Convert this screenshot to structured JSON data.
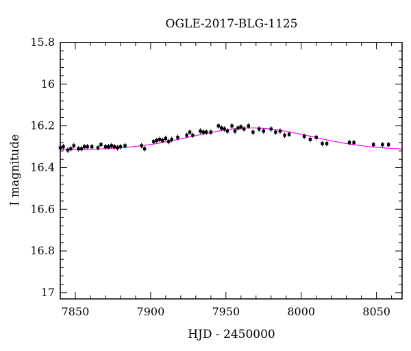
{
  "chart_data": {
    "type": "scatter",
    "title": "OGLE-2017-BLG-1125",
    "xlabel": "HJD - 2450000",
    "ylabel": "I magnitude",
    "xlim": [
      7840,
      8067
    ],
    "ylim": [
      17.03,
      15.8
    ],
    "y_inverted": true,
    "grid": false,
    "xticks": [
      7850,
      7900,
      7950,
      8000,
      8050
    ],
    "xtick_labels": [
      "7850",
      "7900",
      "7950",
      "8000",
      "8050"
    ],
    "yticks": [
      15.8,
      16.0,
      16.2,
      16.4,
      16.6,
      16.8,
      17.0
    ],
    "ytick_labels": [
      "15.8",
      "16",
      "16.2",
      "16.4",
      "16.6",
      "16.8",
      "17"
    ],
    "model_color": "#ff00ff",
    "point_color": "#000000",
    "model": {
      "baseline_mag": 16.315,
      "peak_mag": 16.21,
      "t0": 7967,
      "width": 40,
      "x": [
        7840,
        7850,
        7860,
        7870,
        7880,
        7890,
        7900,
        7910,
        7920,
        7930,
        7940,
        7950,
        7960,
        7967,
        7975,
        7985,
        7995,
        8005,
        8015,
        8025,
        8035,
        8045,
        8055,
        8067
      ],
      "y": [
        16.315,
        16.312,
        16.309,
        16.304,
        16.298,
        16.289,
        16.279,
        16.268,
        16.256,
        16.243,
        16.229,
        16.218,
        16.212,
        16.21,
        16.212,
        16.219,
        16.232,
        16.247,
        16.261,
        16.274,
        16.285,
        16.294,
        16.301,
        16.309
      ]
    },
    "series": [
      {
        "x": [
          7840,
          7842,
          7845,
          7847,
          7849,
          7852,
          7854,
          7856,
          7858,
          7861,
          7865,
          7867,
          7870,
          7872,
          7874,
          7876,
          7878,
          7880,
          7883,
          7894,
          7896,
          7902,
          7904,
          7906,
          7908,
          7910,
          7912,
          7914,
          7918,
          7924,
          7926,
          7928,
          7933,
          7935,
          7937,
          7940,
          7945,
          7947,
          7949,
          7951,
          7954,
          7956,
          7958,
          7960,
          7962,
          7965,
          7968,
          7972,
          7975,
          7980,
          7983,
          7986,
          7989,
          7992,
          8002,
          8006,
          8010,
          8014,
          8017,
          8032,
          8035,
          8048,
          8054,
          8058
        ],
        "y": [
          16.305,
          16.3,
          16.316,
          16.31,
          16.295,
          16.31,
          16.31,
          16.3,
          16.3,
          16.3,
          16.305,
          16.29,
          16.3,
          16.3,
          16.295,
          16.3,
          16.305,
          16.3,
          16.295,
          16.295,
          16.31,
          16.275,
          16.27,
          16.265,
          16.27,
          16.26,
          16.275,
          16.265,
          16.255,
          16.245,
          16.23,
          16.245,
          16.225,
          16.23,
          16.23,
          16.23,
          16.2,
          16.21,
          16.215,
          16.225,
          16.2,
          16.225,
          16.21,
          16.205,
          16.215,
          16.2,
          16.23,
          16.215,
          16.225,
          16.215,
          16.23,
          16.225,
          16.245,
          16.24,
          16.25,
          16.265,
          16.255,
          16.285,
          16.285,
          16.28,
          16.28,
          16.29,
          16.29,
          16.29
        ]
      }
    ]
  }
}
